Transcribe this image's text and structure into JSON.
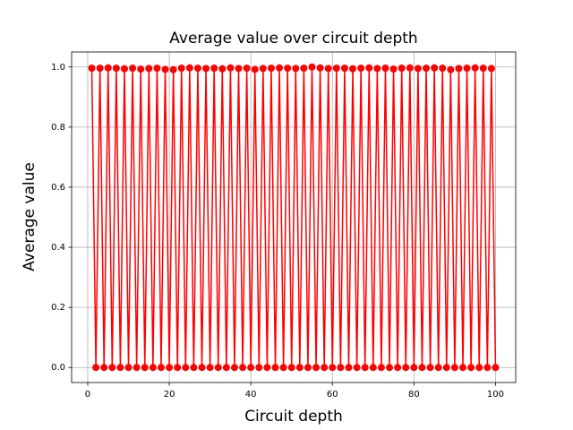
{
  "chart_data": {
    "type": "line",
    "title": "Average value over circuit depth",
    "x_label": "Circuit depth",
    "y_label": "Average value",
    "x": [
      1,
      2,
      3,
      4,
      5,
      6,
      7,
      8,
      9,
      10,
      11,
      12,
      13,
      14,
      15,
      16,
      17,
      18,
      19,
      20,
      21,
      22,
      23,
      24,
      25,
      26,
      27,
      28,
      29,
      30,
      31,
      32,
      33,
      34,
      35,
      36,
      37,
      38,
      39,
      40,
      41,
      42,
      43,
      44,
      45,
      46,
      47,
      48,
      49,
      50,
      51,
      52,
      53,
      54,
      55,
      56,
      57,
      58,
      59,
      60,
      61,
      62,
      63,
      64,
      65,
      66,
      67,
      68,
      69,
      70,
      71,
      72,
      73,
      74,
      75,
      76,
      77,
      78,
      79,
      80,
      81,
      82,
      83,
      84,
      85,
      86,
      87,
      88,
      89,
      90,
      91,
      92,
      93,
      94,
      95,
      96,
      97,
      98,
      99,
      100
    ],
    "series": [
      {
        "color": "#ff0000",
        "values": [
          0.996,
          0,
          0.996,
          0,
          0.997,
          0,
          0.996,
          0,
          0.994,
          0,
          0.996,
          0,
          0.993,
          0,
          0.995,
          0,
          0.996,
          0,
          0.992,
          0,
          0.991,
          0,
          0.996,
          0,
          0.997,
          0,
          0.996,
          0,
          0.995,
          0,
          0.996,
          0,
          0.994,
          0,
          0.997,
          0,
          0.995,
          0,
          0.996,
          0,
          0.992,
          0,
          0.995,
          0,
          0.996,
          0,
          0.997,
          0,
          0.996,
          0,
          0.995,
          0,
          0.996,
          0,
          1.0,
          0,
          0.997,
          0,
          0.995,
          0,
          0.996,
          0,
          0.996,
          0,
          0.994,
          0,
          0.996,
          0,
          0.997,
          0,
          0.995,
          0,
          0.996,
          0,
          0.993,
          0,
          0.996,
          0,
          0.997,
          0,
          0.995,
          0,
          0.996,
          0,
          0.997,
          0,
          0.996,
          0,
          0.991,
          0,
          0.995,
          0,
          0.996,
          0,
          0.997,
          0,
          0.996,
          0,
          0.995,
          0
        ]
      }
    ],
    "xlim": [
      -3.95,
      104.95
    ],
    "xticks": [
      0,
      20,
      40,
      60,
      80,
      100
    ],
    "ylim": [
      -0.05,
      1.05
    ],
    "yticks": [
      {
        "value": 0,
        "label": "0.0"
      },
      0.2,
      0.4,
      0.6,
      0.8,
      {
        "value": 1,
        "label": "1.0"
      }
    ],
    "grid": true
  }
}
